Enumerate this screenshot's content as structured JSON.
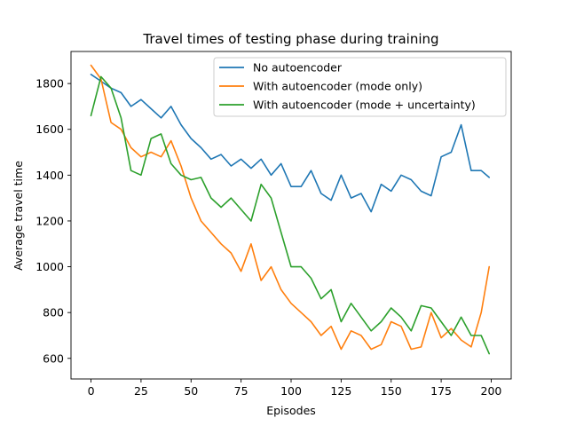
{
  "chart_data": {
    "type": "line",
    "title": "Travel times of testing phase during training",
    "xlabel": "Episodes",
    "ylabel": "Average travel time",
    "xlim": [
      -10,
      210
    ],
    "ylim": [
      510,
      1940
    ],
    "xticks": [
      0,
      25,
      50,
      75,
      100,
      125,
      150,
      175,
      200
    ],
    "yticks": [
      600,
      800,
      1000,
      1200,
      1400,
      1600,
      1800
    ],
    "grid": false,
    "legend_position": "top-right",
    "series": [
      {
        "name": "No autoencoder",
        "color": "#1f77b4",
        "x": [
          0,
          5,
          10,
          15,
          20,
          25,
          30,
          35,
          40,
          45,
          50,
          55,
          60,
          65,
          70,
          75,
          80,
          85,
          90,
          95,
          100,
          105,
          110,
          115,
          120,
          125,
          130,
          135,
          140,
          145,
          150,
          155,
          160,
          165,
          170,
          175,
          180,
          185,
          190,
          195,
          199
        ],
        "values": [
          1840,
          1810,
          1780,
          1760,
          1700,
          1730,
          1690,
          1650,
          1700,
          1620,
          1560,
          1520,
          1470,
          1490,
          1440,
          1470,
          1430,
          1470,
          1400,
          1450,
          1350,
          1350,
          1420,
          1320,
          1290,
          1400,
          1300,
          1320,
          1240,
          1360,
          1330,
          1400,
          1380,
          1330,
          1310,
          1480,
          1500,
          1620,
          1420,
          1420,
          1390
        ]
      },
      {
        "name": "With autoencoder (mode only)",
        "color": "#ff7f0e",
        "x": [
          0,
          5,
          10,
          15,
          20,
          25,
          30,
          35,
          40,
          45,
          50,
          55,
          60,
          65,
          70,
          75,
          80,
          85,
          90,
          95,
          100,
          105,
          110,
          115,
          120,
          125,
          130,
          135,
          140,
          145,
          150,
          155,
          160,
          165,
          170,
          175,
          180,
          185,
          190,
          195,
          199
        ],
        "values": [
          1880,
          1820,
          1630,
          1600,
          1520,
          1480,
          1500,
          1480,
          1550,
          1440,
          1300,
          1200,
          1150,
          1100,
          1060,
          980,
          1100,
          940,
          1000,
          900,
          840,
          800,
          760,
          700,
          740,
          640,
          720,
          700,
          640,
          660,
          760,
          740,
          640,
          650,
          800,
          690,
          730,
          680,
          650,
          800,
          1000
        ]
      },
      {
        "name": "With autoencoder (mode + uncertainty)",
        "color": "#2ca02c",
        "x": [
          0,
          5,
          10,
          15,
          20,
          25,
          30,
          35,
          40,
          45,
          50,
          55,
          60,
          65,
          70,
          75,
          80,
          85,
          90,
          95,
          100,
          105,
          110,
          115,
          120,
          125,
          130,
          135,
          140,
          145,
          150,
          155,
          160,
          165,
          170,
          175,
          180,
          185,
          190,
          195,
          199
        ],
        "values": [
          1660,
          1830,
          1780,
          1650,
          1420,
          1400,
          1560,
          1580,
          1450,
          1400,
          1380,
          1390,
          1300,
          1260,
          1300,
          1250,
          1200,
          1360,
          1300,
          1150,
          1000,
          1000,
          950,
          860,
          900,
          760,
          840,
          780,
          720,
          760,
          820,
          780,
          720,
          830,
          820,
          760,
          700,
          780,
          700,
          700,
          620
        ]
      }
    ]
  }
}
